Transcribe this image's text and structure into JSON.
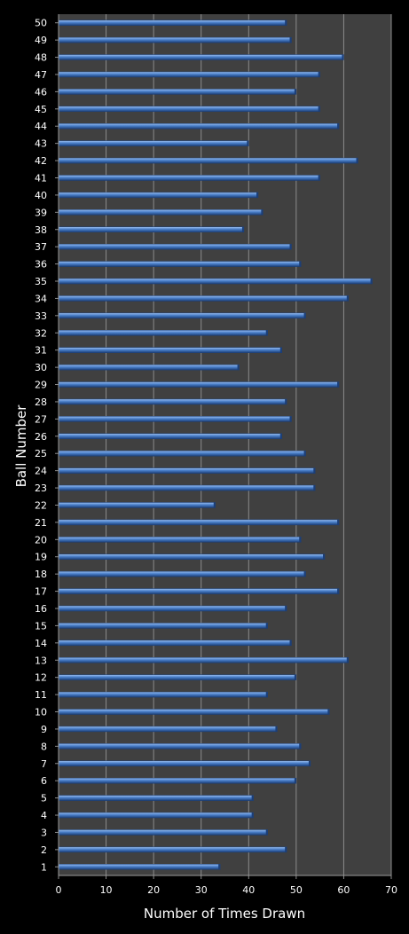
{
  "chart_data": {
    "type": "bar",
    "orientation": "horizontal",
    "title": "",
    "xlabel": "Number of Times Drawn",
    "ylabel": "Ball Number",
    "xlim": [
      0,
      70
    ],
    "x_ticks": [
      0,
      10,
      20,
      30,
      40,
      50,
      60,
      70
    ],
    "grid": true,
    "legend": "none",
    "colors": {
      "plot_background": "#404040",
      "page_background": "#000000",
      "bar": "#4a7fc9",
      "bar_highlight": "#9cc0f0",
      "bar_shadow": "#1c3f78",
      "gridline": "#8c8c8c",
      "text": "#ffffff"
    },
    "categories": [
      "1",
      "2",
      "3",
      "4",
      "5",
      "6",
      "7",
      "8",
      "9",
      "10",
      "11",
      "12",
      "13",
      "14",
      "15",
      "16",
      "17",
      "18",
      "19",
      "20",
      "21",
      "22",
      "23",
      "24",
      "25",
      "26",
      "27",
      "28",
      "29",
      "30",
      "31",
      "32",
      "33",
      "34",
      "35",
      "36",
      "37",
      "38",
      "39",
      "40",
      "41",
      "42",
      "43",
      "44",
      "45",
      "46",
      "47",
      "48",
      "49",
      "50"
    ],
    "values": [
      34,
      48,
      44,
      41,
      41,
      50,
      53,
      51,
      46,
      57,
      44,
      50,
      61,
      49,
      44,
      48,
      59,
      52,
      56,
      51,
      59,
      33,
      54,
      54,
      52,
      47,
      49,
      48,
      59,
      38,
      47,
      44,
      52,
      61,
      66,
      51,
      49,
      39,
      43,
      42,
      55,
      63,
      40,
      59,
      55,
      50,
      55,
      60,
      49,
      48
    ]
  }
}
